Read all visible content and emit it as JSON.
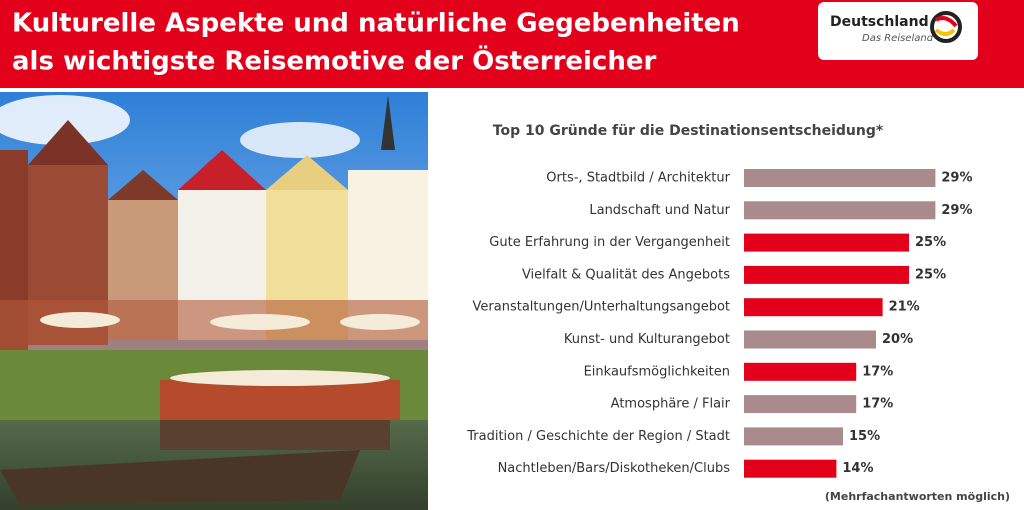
{
  "header": {
    "title": [
      "Kulturelle Aspekte und natürliche Gegebenheiten",
      "als wichtigste Reisemotive der Österreicher"
    ],
    "logo": {
      "name": "Deutschland",
      "tagline": "Das Reiseland"
    }
  },
  "chart_data": {
    "type": "bar",
    "orientation": "horizontal",
    "title": "Top 10 Gründe für die Destinationsentscheidung*",
    "categories": [
      "Orts-, Stadtbild / Architektur",
      "Landschaft und Natur",
      "Gute Erfahrung in der Vergangenheit",
      "Vielfalt & Qualität des Angebots",
      "Veranstaltungen/Unterhaltungsangebot",
      "Kunst- und Kulturangebot",
      "Einkaufsmöglichkeiten",
      "Atmosphäre / Flair",
      "Tradition / Geschichte der Region / Stadt",
      "Nachtleben/Bars/Diskotheken/Clubs"
    ],
    "values": [
      29,
      29,
      25,
      25,
      21,
      20,
      17,
      17,
      15,
      14
    ],
    "value_labels": [
      "29%",
      "29%",
      "25%",
      "25%",
      "21%",
      "20%",
      "17%",
      "17%",
      "15%",
      "14%"
    ],
    "colors": [
      "#a98a8d",
      "#a98a8d",
      "#e3001b",
      "#e3001b",
      "#e3001b",
      "#a98a8d",
      "#e3001b",
      "#a98a8d",
      "#a98a8d",
      "#e3001b"
    ],
    "note": "(Mehrfachantworten möglich)"
  }
}
